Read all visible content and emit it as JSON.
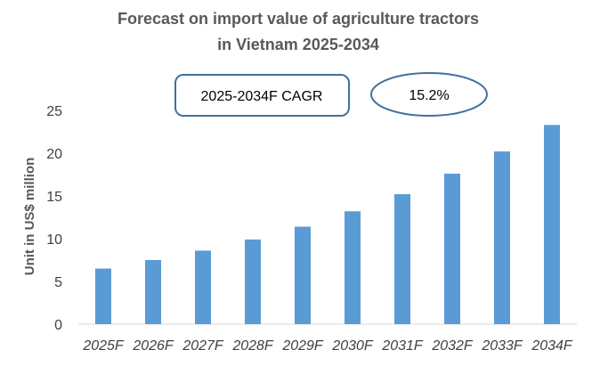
{
  "chart_data": {
    "type": "bar",
    "title_lines": [
      "Forecast on import value of agriculture tractors",
      "in Vietnam 2025-2034"
    ],
    "ylabel": "Unit in US$ million",
    "xlabel": "",
    "ylim": [
      0,
      25
    ],
    "yticks": [
      "0",
      "5",
      "10",
      "15",
      "20",
      "25"
    ],
    "categories": [
      "2025F",
      "2026F",
      "2027F",
      "2028F",
      "2029F",
      "2030F",
      "2031F",
      "2032F",
      "2033F",
      "2034F"
    ],
    "values": [
      6.5,
      7.5,
      8.6,
      9.9,
      11.4,
      13.2,
      15.2,
      17.6,
      20.2,
      23.3
    ],
    "grid": false,
    "legend": "none",
    "annotations": {
      "cagr_label": "2025-2034F CAGR",
      "cagr_value": "15.2%"
    }
  },
  "colors": {
    "bar": "#5B9BD5",
    "title": "#595959",
    "axis": "#D9D9D9",
    "box_border": "#41719C"
  }
}
